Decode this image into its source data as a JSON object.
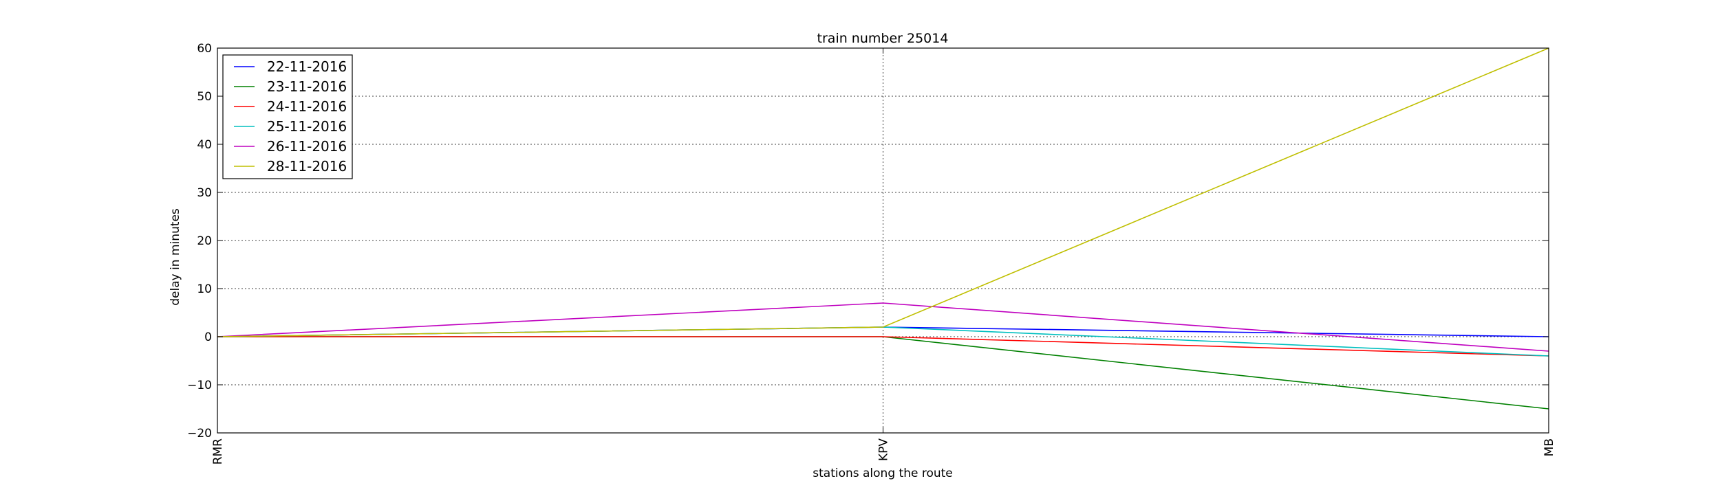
{
  "chart_data": {
    "type": "line",
    "title": "train number 25014",
    "xlabel": "stations along the route",
    "ylabel": "delay in minutes",
    "categories": [
      "RMR",
      "KPV",
      "MB"
    ],
    "ylim": [
      -20,
      60
    ],
    "yticks": [
      -20,
      -10,
      0,
      10,
      20,
      30,
      40,
      50,
      60
    ],
    "ytick_labels": [
      "−20",
      "−10",
      "0",
      "10",
      "20",
      "30",
      "40",
      "50",
      "60"
    ],
    "grid": true,
    "legend_position": "top-left",
    "series": [
      {
        "name": "22-11-2016",
        "color": "#0000ff",
        "values": [
          0,
          2,
          0
        ]
      },
      {
        "name": "23-11-2016",
        "color": "#008000",
        "values": [
          0,
          0,
          -15
        ]
      },
      {
        "name": "24-11-2016",
        "color": "#ff0000",
        "values": [
          0,
          0,
          -4
        ]
      },
      {
        "name": "25-11-2016",
        "color": "#00bfbf",
        "values": [
          0,
          2,
          -4
        ]
      },
      {
        "name": "26-11-2016",
        "color": "#bf00bf",
        "values": [
          0,
          7,
          -3
        ]
      },
      {
        "name": "28-11-2016",
        "color": "#bfbf00",
        "values": [
          0,
          2,
          60
        ]
      }
    ]
  }
}
